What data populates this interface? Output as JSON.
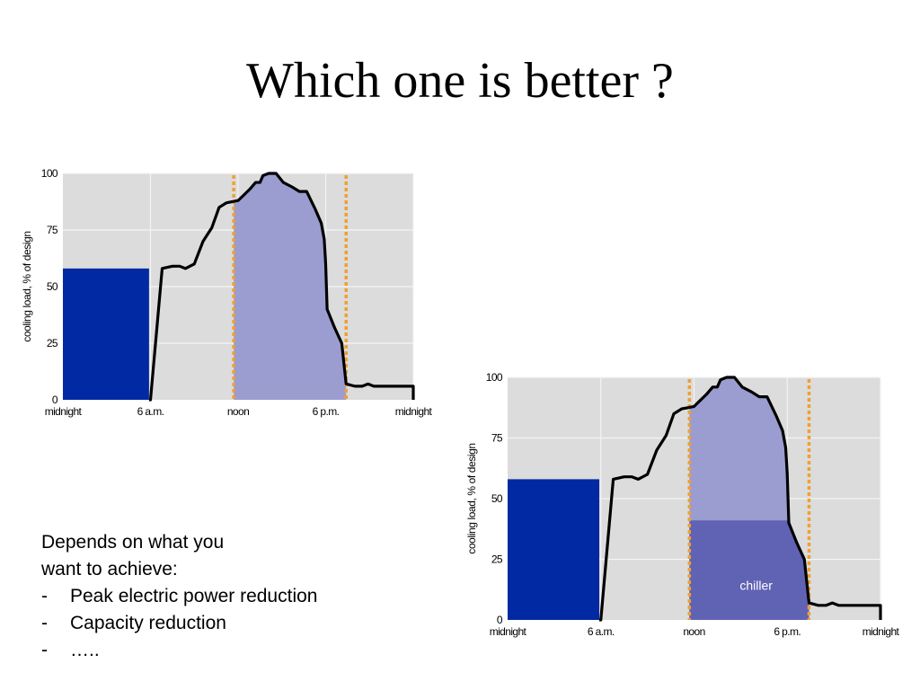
{
  "slide": {
    "title": "Which one is better ?"
  },
  "answer": {
    "intro_line_1": "Depends on what you",
    "intro_line_2": "want to achieve:",
    "bullets": [
      {
        "dash": "-",
        "text": "Peak electric power reduction"
      },
      {
        "dash": "-",
        "text": "Capacity reduction"
      },
      {
        "dash": "-",
        "text": "….."
      }
    ]
  },
  "colors": {
    "plot_background": "#dcdcdc",
    "gridline": "#f4f4f4",
    "storage_block": "#0029a3",
    "peak_area": "#9b9ccf",
    "chiller_area": "#6062b4",
    "load_curve": "#000000",
    "marker_line": "#f0a030"
  },
  "chart_data": [
    {
      "type": "area",
      "chart_id": "chart-1",
      "ylabel": "cooling load, % of design",
      "yticks": [
        100,
        75,
        50,
        25,
        0
      ],
      "ylim": [
        0,
        100
      ],
      "xlim": [
        0,
        24
      ],
      "xticks": [
        {
          "hour": 0,
          "label": "midnight"
        },
        {
          "hour": 6,
          "label": "6 a.m."
        },
        {
          "hour": 12,
          "label": "noon"
        },
        {
          "hour": 18,
          "label": "6 p.m."
        },
        {
          "hour": 24,
          "label": "midnight"
        }
      ],
      "grid": true,
      "series": [
        {
          "role": "load-curve",
          "points": [
            [
              5.9,
              0
            ],
            [
              6.0,
              0
            ],
            [
              6.8,
              58
            ],
            [
              7.5,
              59
            ],
            [
              8.0,
              59
            ],
            [
              8.4,
              58
            ],
            [
              9.0,
              60
            ],
            [
              9.6,
              70
            ],
            [
              10.2,
              76
            ],
            [
              10.7,
              85
            ],
            [
              11.2,
              87
            ],
            [
              12.0,
              88
            ],
            [
              12.8,
              93
            ],
            [
              13.2,
              96
            ],
            [
              13.5,
              96
            ],
            [
              13.7,
              99
            ],
            [
              14.1,
              100
            ],
            [
              14.6,
              100
            ],
            [
              15.1,
              96
            ],
            [
              15.7,
              94
            ],
            [
              16.2,
              92
            ],
            [
              16.7,
              92
            ],
            [
              17.3,
              84
            ],
            [
              17.7,
              78
            ],
            [
              17.9,
              71
            ],
            [
              18.0,
              60
            ],
            [
              18.1,
              40
            ],
            [
              18.6,
              32
            ],
            [
              19.1,
              25
            ],
            [
              19.4,
              7
            ],
            [
              20.0,
              6
            ],
            [
              20.5,
              6
            ],
            [
              20.9,
              7
            ],
            [
              21.3,
              6
            ],
            [
              23.1,
              6
            ],
            [
              24.0,
              6
            ],
            [
              24.0,
              0
            ]
          ]
        },
        {
          "role": "storage-discharge",
          "x_range": [
            0,
            5.9
          ],
          "value": 58
        },
        {
          "role": "peak-area-fill",
          "x_range": [
            11.7,
            19.4
          ]
        },
        {
          "role": "dashed-marker",
          "x": 11.7
        },
        {
          "role": "dashed-marker",
          "x": 19.4
        }
      ]
    },
    {
      "type": "area",
      "chart_id": "chart-2",
      "ylabel": "cooling load, % of design",
      "yticks": [
        100,
        75,
        50,
        25,
        0
      ],
      "ylim": [
        0,
        100
      ],
      "xlim": [
        0,
        24
      ],
      "xticks": [
        {
          "hour": 0,
          "label": "midnight"
        },
        {
          "hour": 6,
          "label": "6 a.m."
        },
        {
          "hour": 12,
          "label": "noon"
        },
        {
          "hour": 18,
          "label": "6 p.m."
        },
        {
          "hour": 24,
          "label": "midnight"
        }
      ],
      "grid": true,
      "series": [
        {
          "role": "load-curve",
          "points": [
            [
              5.9,
              0
            ],
            [
              6.0,
              0
            ],
            [
              6.8,
              58
            ],
            [
              7.5,
              59
            ],
            [
              8.0,
              59
            ],
            [
              8.4,
              58
            ],
            [
              9.0,
              60
            ],
            [
              9.6,
              70
            ],
            [
              10.2,
              76
            ],
            [
              10.7,
              85
            ],
            [
              11.2,
              87
            ],
            [
              12.0,
              88
            ],
            [
              12.8,
              93
            ],
            [
              13.2,
              96
            ],
            [
              13.5,
              96
            ],
            [
              13.7,
              99
            ],
            [
              14.1,
              100
            ],
            [
              14.6,
              100
            ],
            [
              15.1,
              96
            ],
            [
              15.7,
              94
            ],
            [
              16.2,
              92
            ],
            [
              16.7,
              92
            ],
            [
              17.3,
              84
            ],
            [
              17.7,
              78
            ],
            [
              17.9,
              71
            ],
            [
              18.0,
              60
            ],
            [
              18.1,
              40
            ],
            [
              18.6,
              32
            ],
            [
              19.1,
              25
            ],
            [
              19.4,
              7
            ],
            [
              20.0,
              6
            ],
            [
              20.5,
              6
            ],
            [
              20.9,
              7
            ],
            [
              21.3,
              6
            ],
            [
              23.1,
              6
            ],
            [
              24.0,
              6
            ],
            [
              24.0,
              0
            ]
          ]
        },
        {
          "role": "storage-discharge",
          "x_range": [
            0,
            5.9
          ],
          "value": 58
        },
        {
          "role": "peak-area-fill",
          "x_range": [
            11.7,
            19.4
          ]
        },
        {
          "role": "chiller-area",
          "name": "chiller",
          "x_range": [
            11.7,
            19.4
          ],
          "value": 41
        },
        {
          "role": "dashed-marker",
          "x": 11.7
        },
        {
          "role": "dashed-marker",
          "x": 19.4
        }
      ]
    }
  ]
}
